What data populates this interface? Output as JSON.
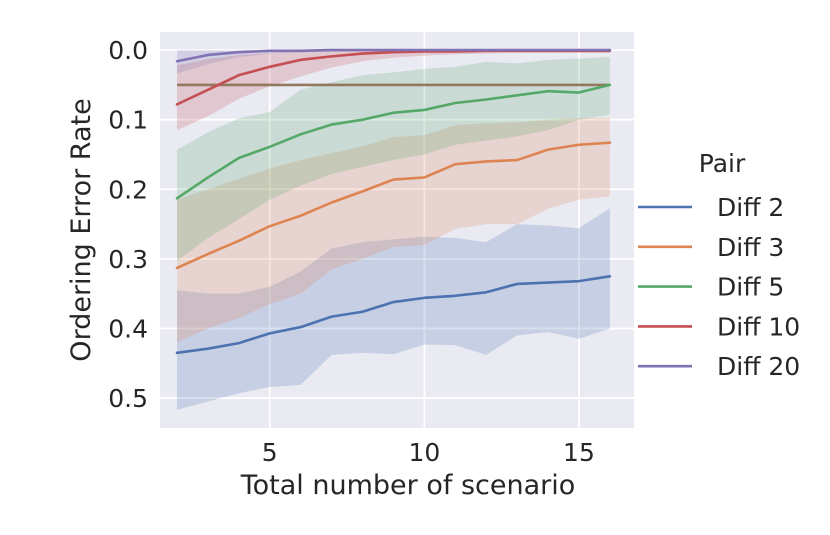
{
  "chart_data": {
    "type": "line",
    "title": "",
    "xlabel": "Total number of scenario",
    "ylabel": "Ordering Error Rate",
    "x": [
      2,
      3,
      4,
      5,
      6,
      7,
      8,
      9,
      10,
      11,
      12,
      13,
      14,
      15,
      16
    ],
    "series": [
      {
        "name": "Diff 2",
        "color": "#4c72b0",
        "values": [
          0.435,
          0.429,
          0.421,
          0.407,
          0.398,
          0.383,
          0.376,
          0.362,
          0.356,
          0.353,
          0.348,
          0.336,
          0.334,
          0.332,
          0.325
        ],
        "ci_lower": [
          0.345,
          0.35,
          0.35,
          0.34,
          0.318,
          0.285,
          0.276,
          0.272,
          0.268,
          0.27,
          0.276,
          0.25,
          0.252,
          0.256,
          0.227
        ],
        "ci_upper": [
          0.517,
          0.505,
          0.493,
          0.484,
          0.481,
          0.438,
          0.435,
          0.437,
          0.423,
          0.424,
          0.438,
          0.41,
          0.405,
          0.415,
          0.4
        ]
      },
      {
        "name": "Diff 3",
        "color": "#dd8452",
        "values": [
          0.313,
          0.293,
          0.274,
          0.253,
          0.238,
          0.219,
          0.203,
          0.186,
          0.183,
          0.164,
          0.16,
          0.158,
          0.143,
          0.136,
          0.133
        ],
        "ci_lower": [
          0.215,
          0.2,
          0.185,
          0.17,
          0.158,
          0.148,
          0.138,
          0.125,
          0.122,
          0.108,
          0.105,
          0.104,
          0.1,
          0.098,
          0.097
        ],
        "ci_upper": [
          0.42,
          0.4,
          0.385,
          0.365,
          0.35,
          0.315,
          0.3,
          0.283,
          0.28,
          0.257,
          0.25,
          0.25,
          0.228,
          0.215,
          0.21
        ]
      },
      {
        "name": "Diff 5",
        "color": "#55a868",
        "values": [
          0.213,
          0.183,
          0.155,
          0.139,
          0.121,
          0.107,
          0.1,
          0.09,
          0.086,
          0.076,
          0.071,
          0.065,
          0.059,
          0.061,
          0.05
        ],
        "ci_lower": [
          0.143,
          0.118,
          0.098,
          0.089,
          0.057,
          0.046,
          0.036,
          0.032,
          0.027,
          0.024,
          0.017,
          0.019,
          0.014,
          0.012,
          0.01
        ],
        "ci_upper": [
          0.303,
          0.27,
          0.243,
          0.215,
          0.195,
          0.178,
          0.168,
          0.158,
          0.15,
          0.136,
          0.13,
          0.124,
          0.115,
          0.1,
          0.093
        ]
      },
      {
        "name": "Diff 10",
        "color": "#c44e52",
        "values": [
          0.078,
          0.057,
          0.036,
          0.024,
          0.014,
          0.009,
          0.005,
          0.003,
          0.002,
          0.002,
          0.001,
          0.001,
          0.001,
          0.001,
          0.001
        ],
        "ci_lower": [
          0.022,
          0.013,
          0.007,
          0.004,
          0.002,
          0.001,
          0.001,
          0.0,
          0.0,
          0.0,
          0.0,
          0.0,
          0.0,
          0.0,
          0.0
        ],
        "ci_upper": [
          0.115,
          0.095,
          0.07,
          0.052,
          0.038,
          0.025,
          0.016,
          0.011,
          0.008,
          0.006,
          0.005,
          0.004,
          0.004,
          0.004,
          0.004
        ]
      },
      {
        "name": "Diff 20",
        "color": "#8172b3",
        "values": [
          0.016,
          0.007,
          0.003,
          0.001,
          0.001,
          0.0,
          0.0,
          0.0,
          0.0,
          0.0,
          0.0,
          0.0,
          0.0,
          0.0,
          0.0
        ],
        "ci_lower": [
          0.0,
          0.0,
          0.0,
          0.0,
          0.0,
          0.0,
          0.0,
          0.0,
          0.0,
          0.0,
          0.0,
          0.0,
          0.0,
          0.0,
          0.0
        ],
        "ci_upper": [
          0.034,
          0.02,
          0.01,
          0.005,
          0.003,
          0.002,
          0.001,
          0.0,
          0.0,
          0.0,
          0.0,
          0.0,
          0.0,
          0.0,
          0.0
        ]
      }
    ],
    "reference_line": {
      "y": 0.05,
      "color": "#937860",
      "x_start": 2,
      "x_end": 16
    },
    "xticks": {
      "values": [
        5,
        10,
        15
      ],
      "labels": [
        "5",
        "10",
        "15"
      ]
    },
    "yticks": {
      "values": [
        0.0,
        0.1,
        0.2,
        0.3,
        0.4,
        0.5
      ],
      "labels": [
        "0.0",
        "0.1",
        "0.2",
        "0.3",
        "0.4",
        "0.5"
      ]
    },
    "xlim": [
      1.45,
      16.78
    ],
    "ylim_top": -0.026,
    "ylim_bottom": 0.543,
    "y_axis_inverted": true,
    "grid": true,
    "legend": {
      "title": "Pair",
      "position": "outside-right"
    }
  },
  "style": {
    "plot_bg": "#eaeaf2",
    "grid_color": "#ffffff",
    "text_color": "#262626",
    "band_opacity": 0.22,
    "line_width": 2.6,
    "figure_bg": "#ffffff"
  }
}
